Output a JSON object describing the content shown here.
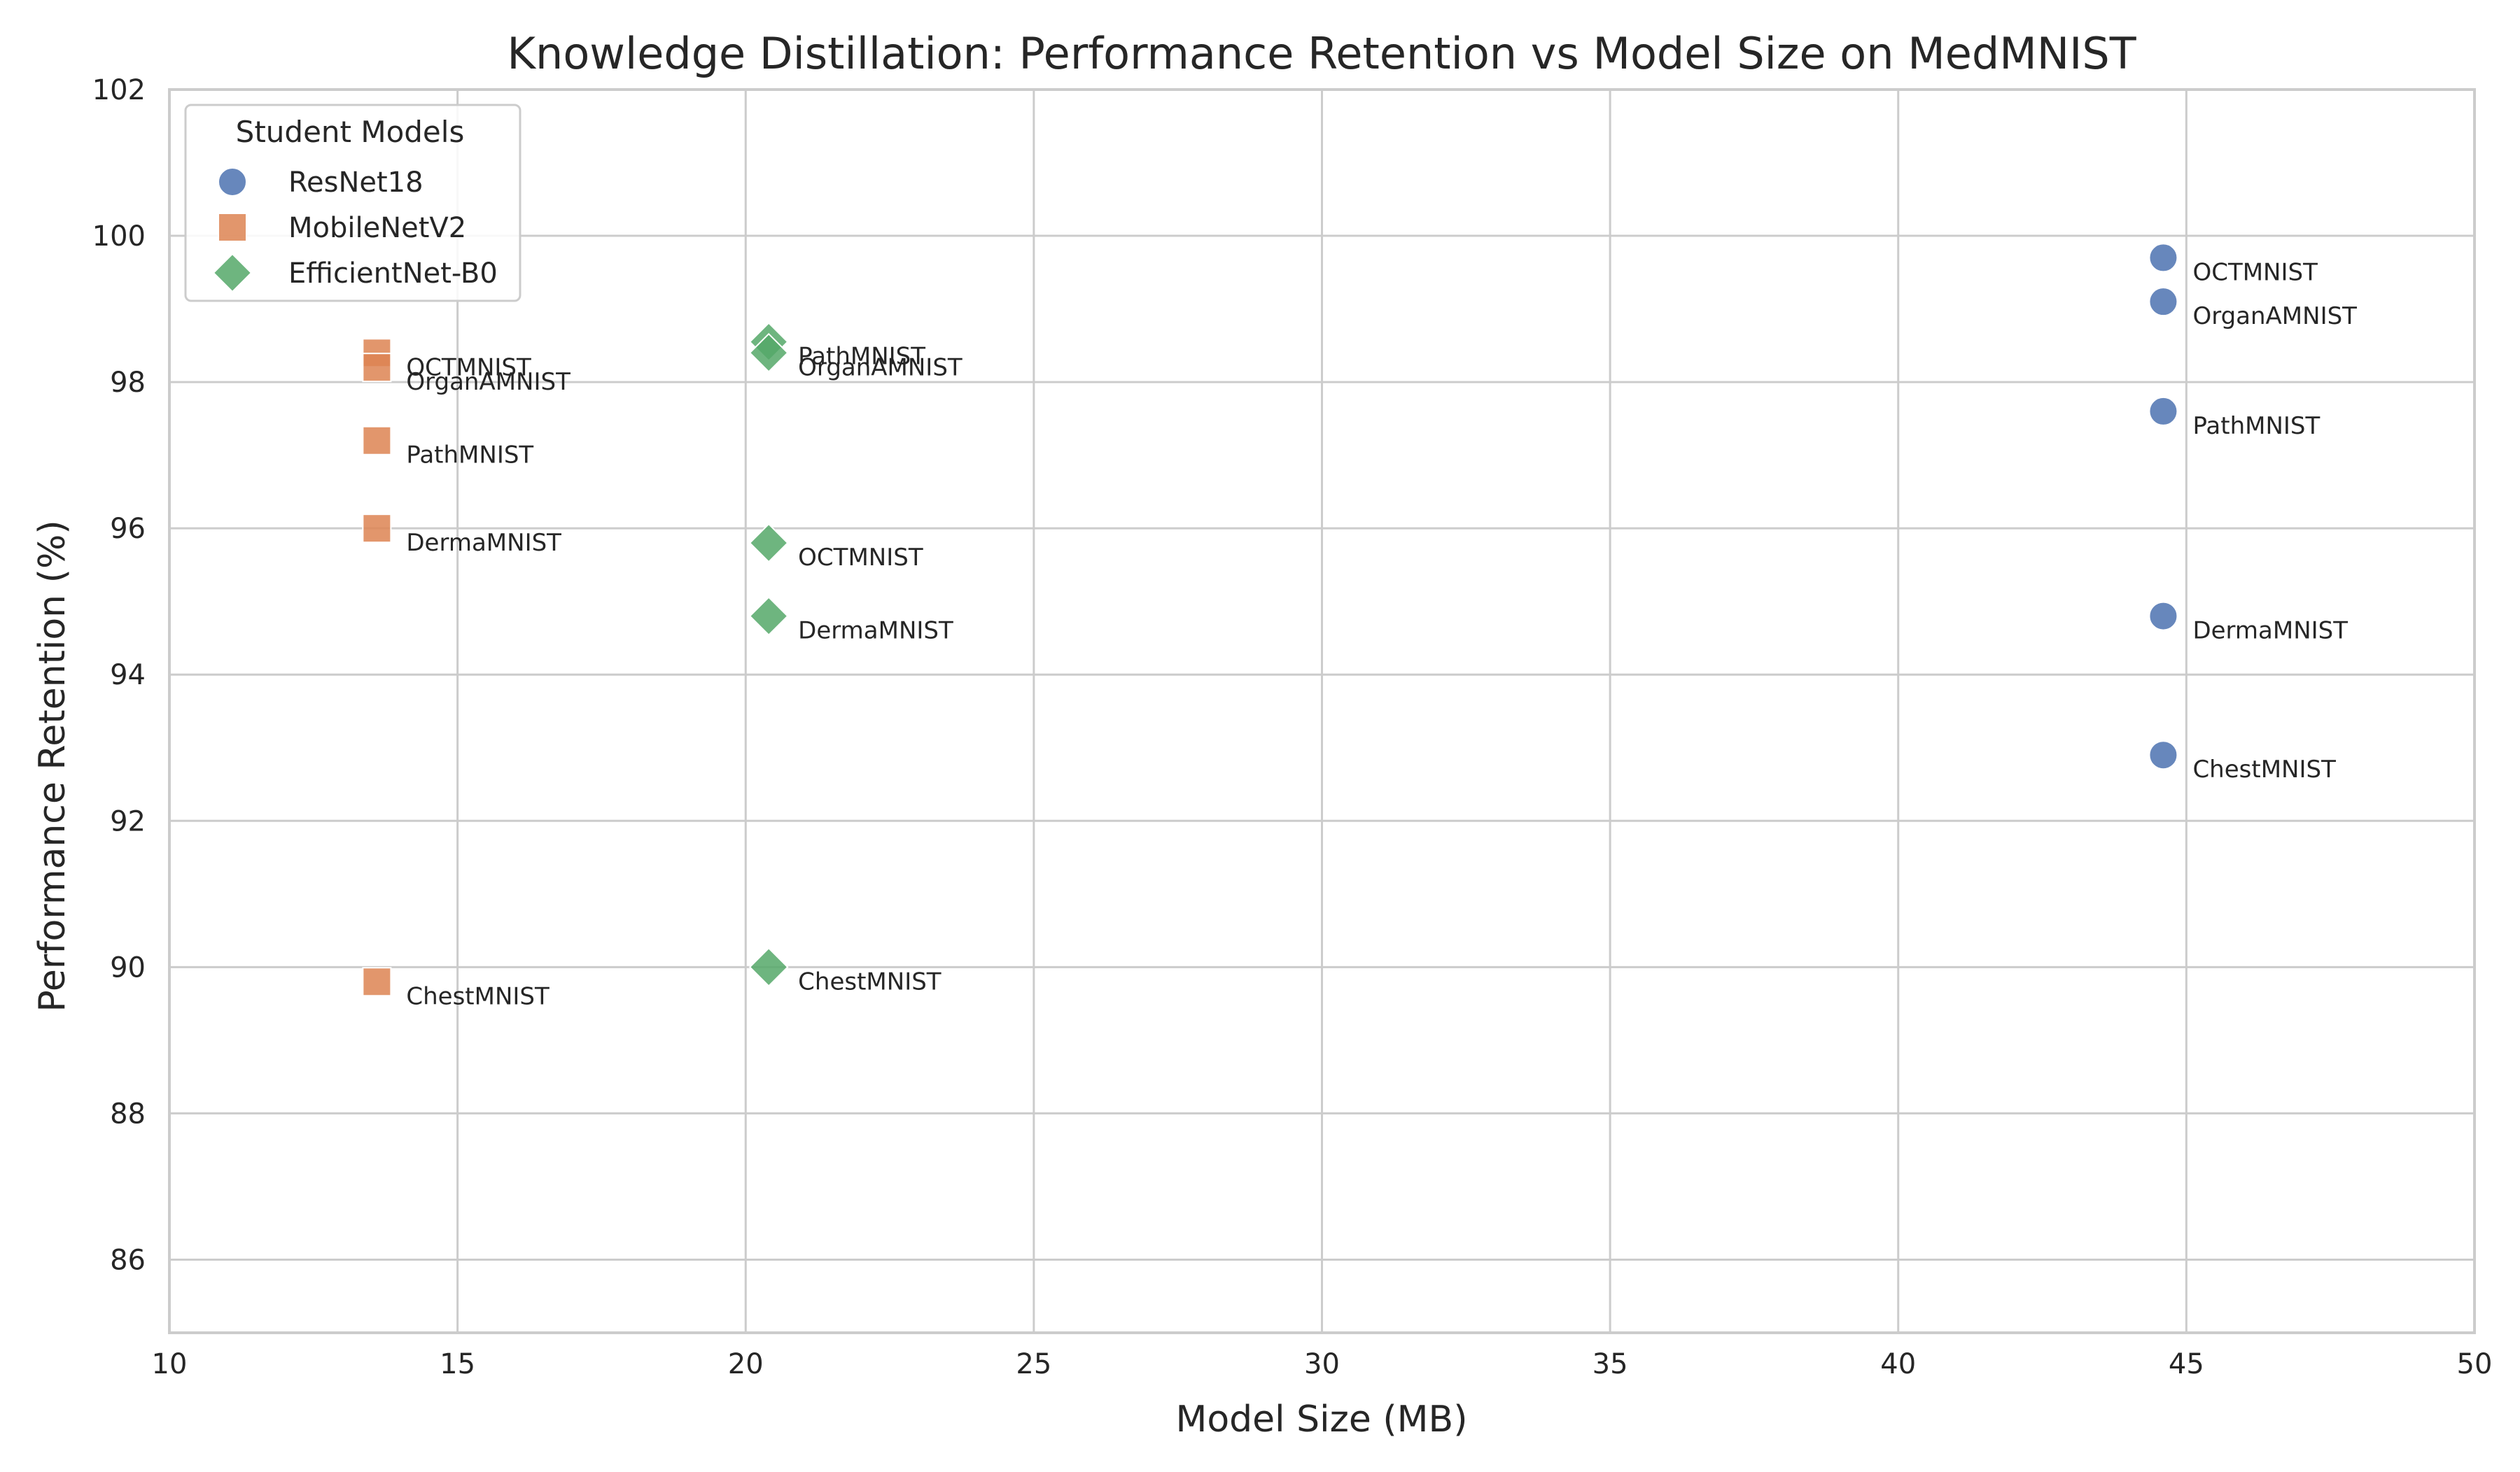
{
  "chart_data": {
    "type": "scatter",
    "title": "Knowledge Distillation: Performance Retention vs Model Size on MedMNIST",
    "xlabel": "Model Size (MB)",
    "ylabel": "Performance Retention (%)",
    "xlim": [
      10,
      50
    ],
    "ylim": [
      85,
      102
    ],
    "xticks": [
      10,
      15,
      20,
      25,
      30,
      35,
      40,
      45,
      50
    ],
    "yticks": [
      86,
      88,
      90,
      92,
      94,
      96,
      98,
      100,
      102
    ],
    "grid": true,
    "legend": {
      "title": "Student Models",
      "placement": "top-left"
    },
    "series": [
      {
        "name": "ResNet18",
        "marker": "circle",
        "color": "#4C72B0",
        "points": [
          {
            "label": "OCTMNIST",
            "x": 44.6,
            "y": 99.7
          },
          {
            "label": "OrganAMNIST",
            "x": 44.6,
            "y": 99.1
          },
          {
            "label": "PathMNIST",
            "x": 44.6,
            "y": 97.6
          },
          {
            "label": "DermaMNIST",
            "x": 44.6,
            "y": 94.8
          },
          {
            "label": "ChestMNIST",
            "x": 44.6,
            "y": 92.9
          }
        ]
      },
      {
        "name": "MobileNetV2",
        "marker": "square",
        "color": "#DD8452",
        "points": [
          {
            "label": "OCTMNIST",
            "x": 13.6,
            "y": 98.4
          },
          {
            "label": "OrganAMNIST",
            "x": 13.6,
            "y": 98.2
          },
          {
            "label": "PathMNIST",
            "x": 13.6,
            "y": 97.2
          },
          {
            "label": "DermaMNIST",
            "x": 13.6,
            "y": 96.0
          },
          {
            "label": "ChestMNIST",
            "x": 13.6,
            "y": 89.8
          }
        ]
      },
      {
        "name": "EfficientNet-B0",
        "marker": "diamond",
        "color": "#55A868",
        "points": [
          {
            "label": "PathMNIST",
            "x": 20.4,
            "y": 98.55
          },
          {
            "label": "OrganAMNIST",
            "x": 20.4,
            "y": 98.4
          },
          {
            "label": "OCTMNIST",
            "x": 20.4,
            "y": 95.8
          },
          {
            "label": "DermaMNIST",
            "x": 20.4,
            "y": 94.8
          },
          {
            "label": "ChestMNIST",
            "x": 20.4,
            "y": 90.0
          }
        ]
      }
    ]
  }
}
